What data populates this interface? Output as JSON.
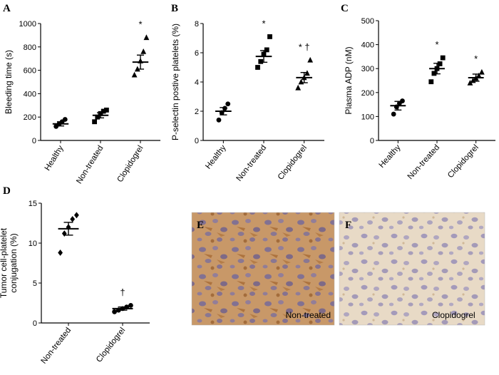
{
  "chart_data": [
    {
      "panel": "A",
      "type": "scatter",
      "ylabel": "Bleeding time (s)",
      "ylim": [
        0,
        1000
      ],
      "yticks": [
        0,
        200,
        400,
        600,
        800,
        1000
      ],
      "categories": [
        "Healthy",
        "Non-treated",
        "Clopidogrel"
      ],
      "markers": [
        "circle",
        "square",
        "triangle"
      ],
      "points": [
        [
          120,
          140,
          160,
          180
        ],
        [
          160,
          200,
          230,
          250,
          260
        ],
        [
          560,
          610,
          680,
          760,
          880
        ]
      ],
      "means": [
        142,
        215,
        670
      ],
      "sem": [
        18,
        22,
        60
      ],
      "annotations": [
        "",
        "",
        "*"
      ],
      "grid": false
    },
    {
      "panel": "B",
      "type": "scatter",
      "ylabel": "P-selectin postive platelets (%)",
      "ylim": [
        0,
        8
      ],
      "yticks": [
        0,
        2,
        4,
        6,
        8
      ],
      "categories": [
        "Healthy",
        "Non-treated",
        "Clopidogrel"
      ],
      "markers": [
        "circle",
        "square",
        "triangle"
      ],
      "points": [
        [
          1.4,
          1.9,
          2.2,
          2.5
        ],
        [
          5.0,
          5.4,
          5.9,
          6.2,
          7.1
        ],
        [
          3.6,
          4.0,
          4.3,
          4.6,
          5.5
        ]
      ],
      "means": [
        2.0,
        5.75,
        4.3
      ],
      "sem": [
        0.25,
        0.4,
        0.35
      ],
      "annotations": [
        "",
        "*",
        "* †"
      ],
      "grid": false
    },
    {
      "panel": "C",
      "type": "scatter",
      "ylabel": "Plasma ADP (nM)",
      "ylim": [
        0,
        500
      ],
      "yticks": [
        0,
        100,
        200,
        300,
        400,
        500
      ],
      "categories": [
        "Healthy",
        "Non-treated",
        "Clopidogrel"
      ],
      "markers": [
        "circle",
        "square",
        "triangle"
      ],
      "points": [
        [
          110,
          140,
          155,
          165
        ],
        [
          245,
          280,
          300,
          320,
          345
        ],
        [
          240,
          250,
          260,
          270,
          285
        ]
      ],
      "means": [
        145,
        300,
        262
      ],
      "sem": [
        18,
        22,
        15
      ],
      "annotations": [
        "",
        "*",
        "*"
      ],
      "grid": false
    },
    {
      "panel": "D",
      "type": "scatter",
      "ylabel": "Tumor cell-platelet conjugation (%)",
      "ylim": [
        0,
        15
      ],
      "yticks": [
        0,
        5,
        10,
        15
      ],
      "categories": [
        "Non-treated",
        "Clopidogrel"
      ],
      "markers": [
        "diamond",
        "circle"
      ],
      "points": [
        [
          8.8,
          11.2,
          12.0,
          13.0,
          13.5
        ],
        [
          1.4,
          1.6,
          1.8,
          2.0,
          2.2
        ]
      ],
      "means": [
        11.8,
        1.8
      ],
      "sem": [
        0.8,
        0.2
      ],
      "annotations": [
        "",
        "†"
      ],
      "grid": false
    }
  ],
  "micrographs": [
    {
      "panel": "E",
      "caption": "Non-treated",
      "stain": "#a0642e"
    },
    {
      "panel": "F",
      "caption": "Clopidogrel",
      "stain": "#d2b68f"
    }
  ]
}
